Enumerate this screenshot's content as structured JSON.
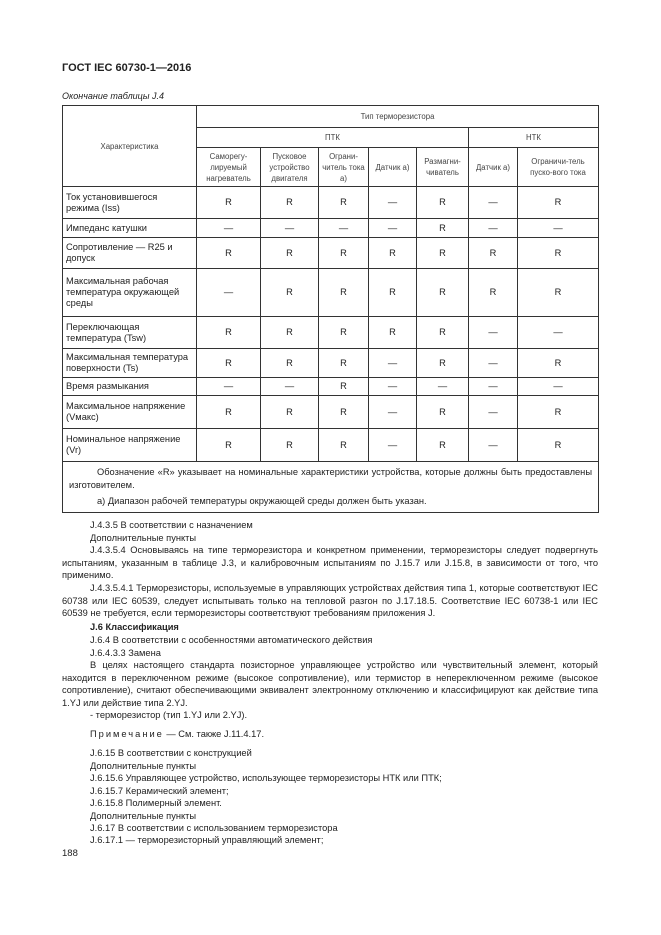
{
  "header": "ГОСТ IEC 60730-1—2016",
  "caption": "Окончание таблицы J.4",
  "table": {
    "col_char": "Характеристика",
    "group_title": "Тип терморезистора",
    "ptk": "ПТК",
    "ntk": "НТК",
    "cols": [
      "Саморегу-лируемый нагреватель",
      "Пусковое устройство двигателя",
      "Ограни-читель тока а)",
      "Датчик а)",
      "Размагни-чиватель",
      "Датчик а)",
      "Ограничи-тель пуско-вого тока"
    ],
    "rows": [
      {
        "name": "Ток установившегося режима (Iss)",
        "values": [
          "R",
          "R",
          "R",
          "—",
          "R",
          "—",
          "R"
        ]
      },
      {
        "name": "Импеданс катушки",
        "values": [
          "—",
          "—",
          "—",
          "—",
          "R",
          "—",
          "—"
        ]
      },
      {
        "name": "Сопротивление — R25 и допуск",
        "values": [
          "R",
          "R",
          "R",
          "R",
          "R",
          "R",
          "R"
        ]
      },
      {
        "name": "Максимальная рабочая температура окружающей среды",
        "values": [
          "—",
          "R",
          "R",
          "R",
          "R",
          "R",
          "R"
        ]
      },
      {
        "name": "Переключающая температура (Tsw)",
        "values": [
          "R",
          "R",
          "R",
          "R",
          "R",
          "—",
          "—"
        ]
      },
      {
        "name": "Максимальная температура поверхности (Ts)",
        "values": [
          "R",
          "R",
          "R",
          "—",
          "R",
          "—",
          "R"
        ]
      },
      {
        "name": "Время размыкания",
        "values": [
          "—",
          "—",
          "R",
          "—",
          "—",
          "—",
          "—"
        ]
      },
      {
        "name": "Максимальное напряжение (Vмакс)",
        "values": [
          "R",
          "R",
          "R",
          "—",
          "R",
          "—",
          "R"
        ]
      },
      {
        "name": "Номинальное напряжение (Vr)",
        "values": [
          "R",
          "R",
          "R",
          "—",
          "R",
          "—",
          "R"
        ]
      }
    ],
    "note1": "Обозначение «R» указывает на номинальные характеристики устройства, которые должны быть предоставлены изготовителем.",
    "note2": "а) Диапазон рабочей температуры окружающей среды должен быть указан."
  },
  "text": {
    "l1": "J.4.3.5 В соответствии с назначением",
    "l2": "Дополнительные пункты",
    "p1": "J.4.3.5.4 Основываясь на типе терморезистора и конкретном применении, терморезисторы следует подвергнуть испытаниям, указанным в таблице J.3, и калибровочным испытаниям по J.15.7 или J.15.8, в зависимости от того, что применимо.",
    "p2": "J.4.3.5.4.1 Терморезисторы, используемые в управляющих устройствах действия типа 1, которые соответствуют IEC 60738 или IEC 60539, следует испытывать только на тепловой разгон по J.17.18.5. Соответствие IEC 60738-1 или IEC 60539 не требуется, если терморезисторы соответствуют требованиям приложения J.",
    "h6": "J.6 Классификация",
    "l3": "J.6.4 В соответствии с особенностями автоматического действия",
    "l4": "J.6.4.3.3 Замена",
    "p3": "В целях настоящего стандарта позисторное управляющее устройство или чувствительный элемент, который находится в переключенном режиме (высокое сопротивление), или термистор в непереключенном режиме (высокое сопротивление), считают обеспечивающими эквивалент электронному отключению и классифицируют как действие типа 1.YJ или действие типа 2.YJ.",
    "l5": "- терморезистор (тип 1.YJ или 2.YJ).",
    "note_label": "Примечание",
    "note": "— См. также J.11.4.17.",
    "l6": "J.6.15 В соответствии с конструкцией",
    "l7": "Дополнительные пункты",
    "l8": "J.6.15.6 Управляющее устройство, использующее терморезисторы НТК или ПТК;",
    "l9": "J.6.15.7 Керамический элемент;",
    "l10": "J.6.15.8 Полимерный элемент.",
    "l11": "Дополнительные пункты",
    "l12": "J.6.17 В соответствии с использованием терморезистора",
    "l13": "J.6.17.1 — терморезисторный управляющий элемент;"
  },
  "page_number": "188"
}
